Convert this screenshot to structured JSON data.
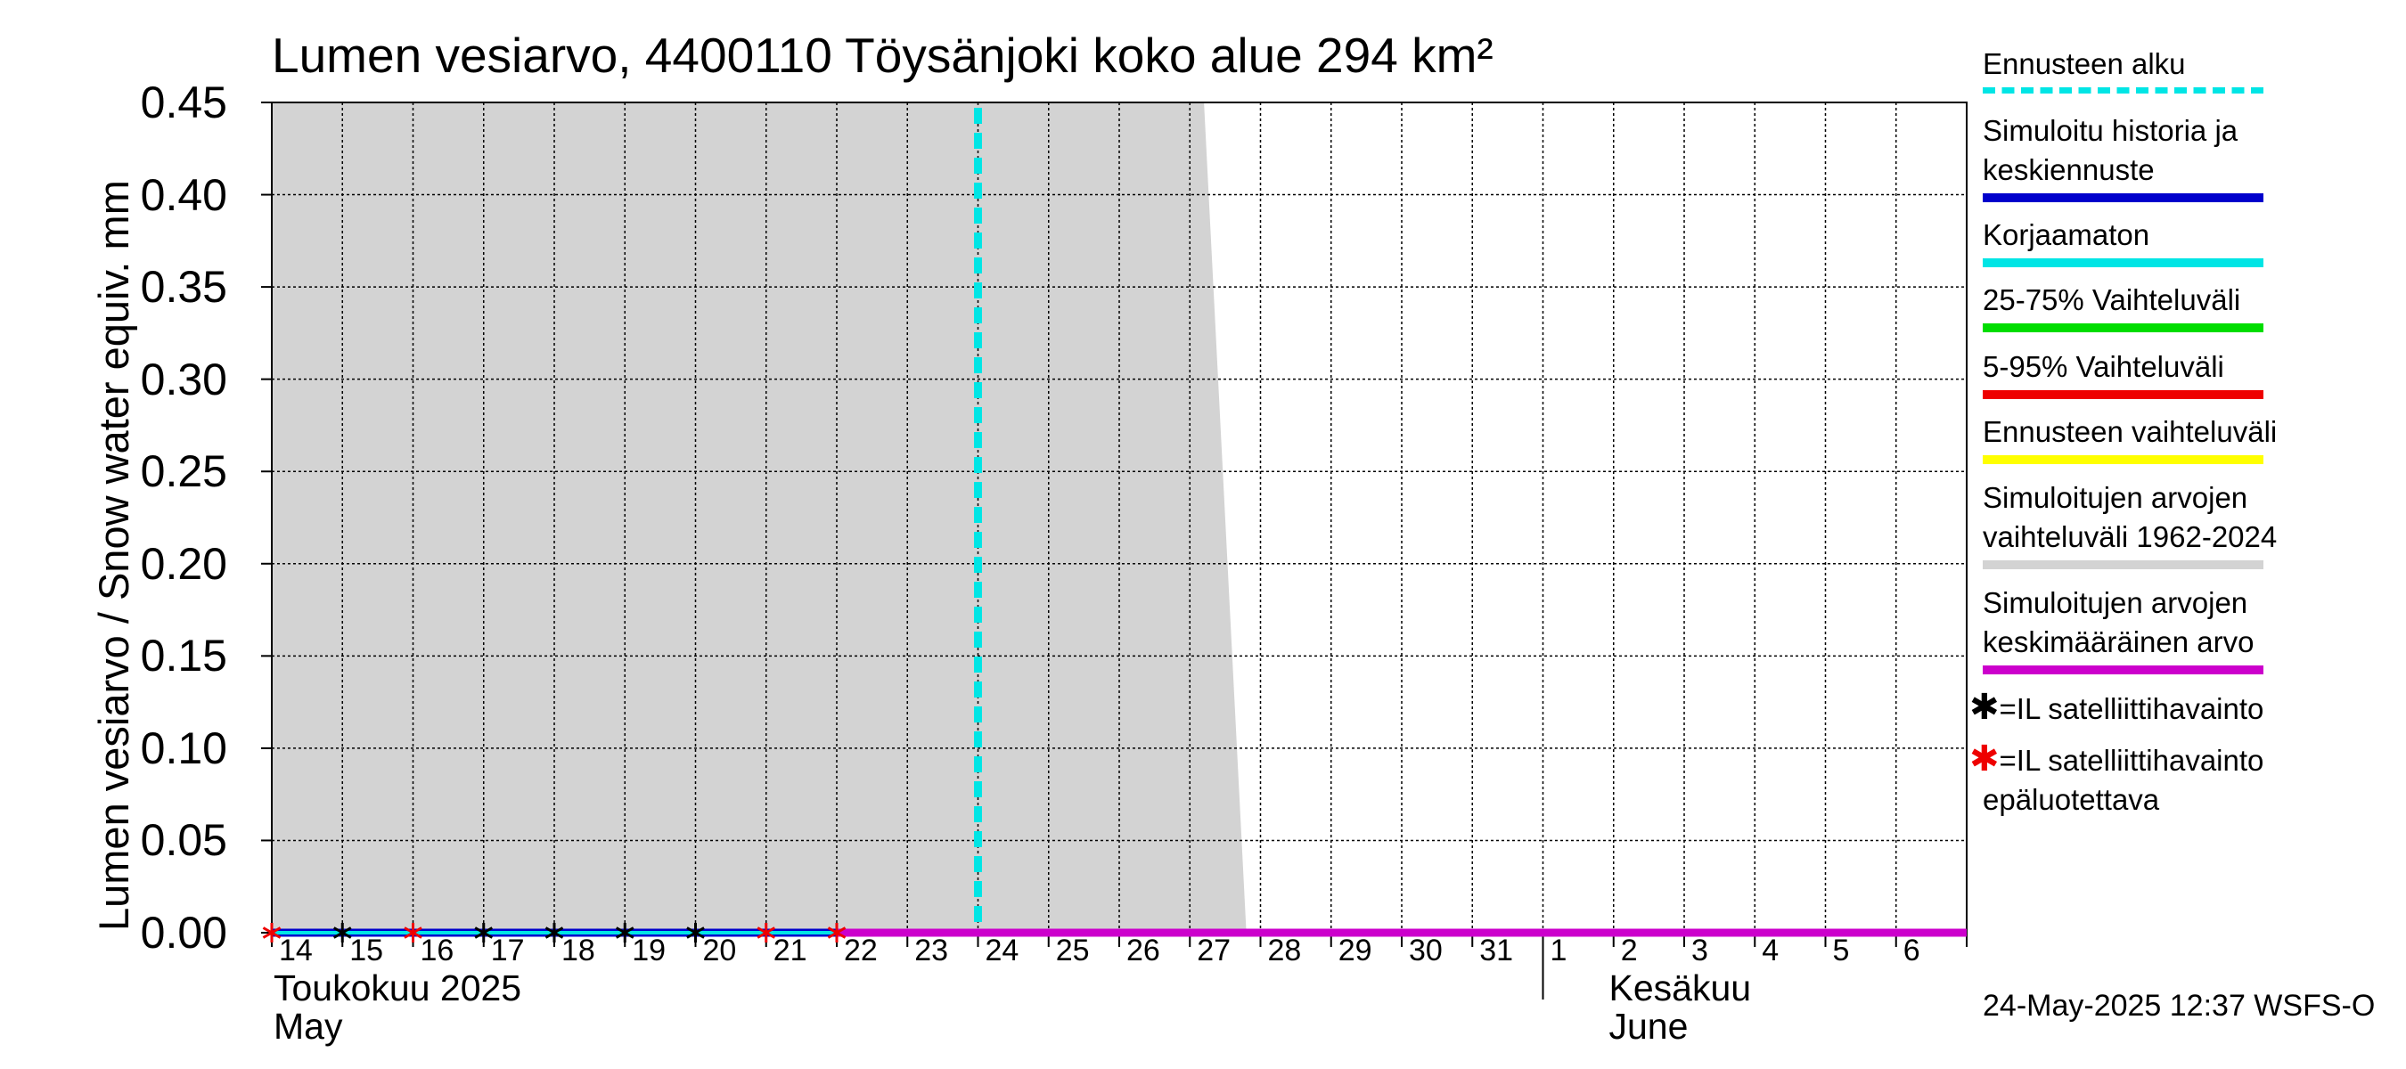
{
  "chart_data": {
    "type": "area",
    "title": "Lumen vesiarvo, 4400110 Töysänjoki koko alue 294 km²",
    "ylabel": "Lumen vesiarvo / Snow water equiv.    mm",
    "ylim": [
      0,
      0.45
    ],
    "y_ticks": [
      "0.00",
      "0.05",
      "0.10",
      "0.15",
      "0.20",
      "0.25",
      "0.30",
      "0.35",
      "0.40",
      "0.45"
    ],
    "x_ticks": [
      "14",
      "15",
      "16",
      "17",
      "18",
      "19",
      "20",
      "21",
      "22",
      "23",
      "24",
      "25",
      "26",
      "27",
      "28",
      "29",
      "30",
      "31",
      "1",
      "2",
      "3",
      "4",
      "5",
      "6"
    ],
    "month_labels": [
      {
        "line1": "Toukokuu  2025",
        "line2": "May"
      },
      {
        "line1": "Kesäkuu",
        "line2": "June"
      }
    ],
    "forecast_start_day": 24,
    "historical_range_band": {
      "x": [
        14,
        27.2,
        27.8
      ],
      "upper": [
        0.45,
        0.45,
        0.0
      ],
      "lower": [
        0,
        0,
        0
      ]
    },
    "series": [
      {
        "name": "Simuloitu historia ja keskiennuste",
        "color": "#0000cc",
        "x": [
          14,
          22
        ],
        "y": [
          0,
          0
        ]
      },
      {
        "name": "Korjaamaton",
        "color": "#00e5e5",
        "x": [
          14,
          22
        ],
        "y": [
          0,
          0
        ]
      },
      {
        "name": "Simuloitujen arvojen keskimääräinen arvo",
        "color": "#cc00cc",
        "x": [
          22,
          38
        ],
        "y": [
          0,
          0
        ]
      }
    ],
    "satellite_observations": [
      {
        "day": 14,
        "value": 0,
        "reliable": false
      },
      {
        "day": 15,
        "value": 0,
        "reliable": true
      },
      {
        "day": 16,
        "value": 0,
        "reliable": false
      },
      {
        "day": 17,
        "value": 0,
        "reliable": true
      },
      {
        "day": 18,
        "value": 0,
        "reliable": true
      },
      {
        "day": 19,
        "value": 0,
        "reliable": true
      },
      {
        "day": 20,
        "value": 0,
        "reliable": true
      },
      {
        "day": 21,
        "value": 0,
        "reliable": false
      },
      {
        "day": 22,
        "value": 0,
        "reliable": false
      }
    ],
    "legend": [
      {
        "lines": [
          "Ennusteen alku"
        ],
        "color": "#00e5e5",
        "style": "dashed"
      },
      {
        "lines": [
          "Simuloitu historia ja",
          "keskiennuste"
        ],
        "color": "#0000cc",
        "style": "solid"
      },
      {
        "lines": [
          "Korjaamaton"
        ],
        "color": "#00e5e5",
        "style": "solid"
      },
      {
        "lines": [
          "25-75% Vaihteluväli"
        ],
        "color": "#00dd00",
        "style": "solid"
      },
      {
        "lines": [
          "5-95% Vaihteluväli"
        ],
        "color": "#ee0000",
        "style": "solid"
      },
      {
        "lines": [
          "Ennusteen vaihteluväli"
        ],
        "color": "#ffff00",
        "style": "solid"
      },
      {
        "lines": [
          "Simuloitujen arvojen",
          "vaihteluväli 1962-2024"
        ],
        "color": "#d3d3d3",
        "style": "solid"
      },
      {
        "lines": [
          "Simuloitujen arvojen",
          "keskimääräinen arvo"
        ],
        "color": "#cc00cc",
        "style": "solid"
      }
    ],
    "legend_markers": [
      {
        "lines": [
          "=IL satelliittihavainto"
        ],
        "color": "#000000"
      },
      {
        "lines": [
          "=IL satelliittihavainto",
          "epäluotettava"
        ],
        "color": "#ee0000"
      }
    ],
    "footer": "24-May-2025 12:37 WSFS-O"
  }
}
